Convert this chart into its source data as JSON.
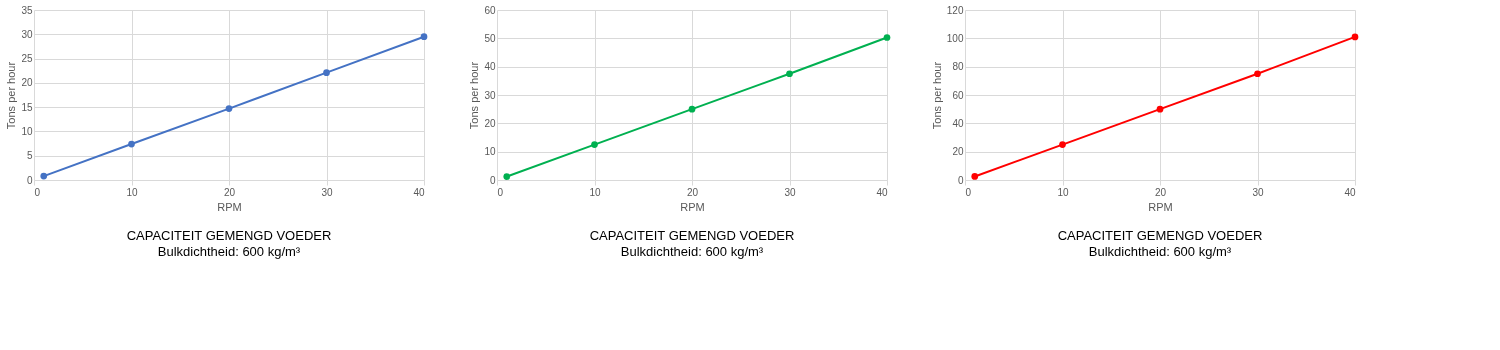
{
  "chart_data": [
    {
      "type": "line",
      "title": "CAPACITEIT GEMENGD VOEDER",
      "subtitle": "Bulkdichtheid: 600 kg/m³",
      "xlabel": "RPM",
      "ylabel": "Tons per hour",
      "x": [
        1,
        10,
        20,
        30,
        40
      ],
      "series": [
        {
          "color": "#4472c4",
          "values": [
            0.8,
            7.4,
            14.7,
            22.1,
            29.5
          ]
        }
      ],
      "xlim": [
        0,
        40
      ],
      "xticks": [
        0,
        10,
        20,
        30,
        40
      ],
      "ylim": [
        0,
        35
      ],
      "yticks": [
        0,
        5,
        10,
        15,
        20,
        25,
        30,
        35
      ],
      "grid": true,
      "marker": "circle",
      "line_style": "solid"
    },
    {
      "type": "line",
      "title": "CAPACITEIT GEMENGD VOEDER",
      "subtitle": "Bulkdichtheid: 600 kg/m³",
      "xlabel": "RPM",
      "ylabel": "Tons per hour",
      "x": [
        1,
        10,
        20,
        30,
        40
      ],
      "series": [
        {
          "color": "#00b050",
          "values": [
            1.2,
            12.5,
            25,
            37.5,
            50.3
          ]
        }
      ],
      "xlim": [
        0,
        40
      ],
      "xticks": [
        0,
        10,
        20,
        30,
        40
      ],
      "ylim": [
        0,
        60
      ],
      "yticks": [
        0,
        10,
        20,
        30,
        40,
        50,
        60
      ],
      "grid": true,
      "marker": "circle",
      "line_style": "solid"
    },
    {
      "type": "line",
      "title": "CAPACITEIT GEMENGD VOEDER",
      "subtitle": "Bulkdichtheid: 600 kg/m³",
      "xlabel": "RPM",
      "ylabel": "Tons per hour",
      "x": [
        1,
        10,
        20,
        30,
        40
      ],
      "series": [
        {
          "color": "#ff0000",
          "values": [
            2.5,
            25,
            50,
            75,
            101
          ]
        }
      ],
      "xlim": [
        0,
        40
      ],
      "xticks": [
        0,
        10,
        20,
        30,
        40
      ],
      "ylim": [
        0,
        120
      ],
      "yticks": [
        0,
        20,
        40,
        60,
        80,
        100,
        120
      ],
      "grid": true,
      "marker": "circle",
      "line_style": "solid"
    }
  ]
}
